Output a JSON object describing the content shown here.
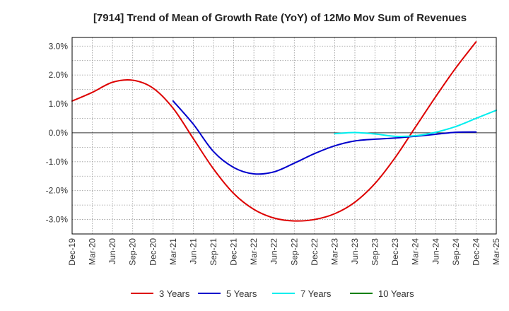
{
  "chart_data": {
    "type": "line",
    "title": "[7914]  Trend of Mean of Growth Rate (YoY) of 12Mo Mov Sum of Revenues",
    "xlabel": "",
    "ylabel": "",
    "x_tick_labels": [
      "Dec-19",
      "Mar-20",
      "Jun-20",
      "Sep-20",
      "Dec-20",
      "Mar-21",
      "Jun-21",
      "Sep-21",
      "Dec-21",
      "Mar-22",
      "Jun-22",
      "Sep-22",
      "Dec-22",
      "Mar-23",
      "Jun-23",
      "Sep-23",
      "Dec-23",
      "Mar-24",
      "Jun-24",
      "Sep-24",
      "Dec-24",
      "Mar-25"
    ],
    "y_ticks": [
      3.0,
      2.0,
      1.0,
      0.0,
      -1.0,
      -2.0,
      -3.0
    ],
    "y_tick_labels": [
      "3.0%",
      "2.0%",
      "1.0%",
      "0.0%",
      "-1.0%",
      "-2.0%",
      "-3.0%"
    ],
    "ylim": [
      -3.5,
      3.3
    ],
    "grid": true,
    "legend_position": "bottom",
    "series": [
      {
        "name": "3 Years",
        "color": "#dd0000",
        "start_index": 0,
        "values": [
          1.1,
          1.4,
          1.75,
          1.82,
          1.55,
          0.85,
          -0.2,
          -1.25,
          -2.1,
          -2.65,
          -2.95,
          -3.05,
          -3.0,
          -2.8,
          -2.4,
          -1.75,
          -0.85,
          0.2,
          1.25,
          2.25,
          3.15
        ]
      },
      {
        "name": "5 Years",
        "color": "#0000cc",
        "start_index": 5,
        "values": [
          1.1,
          0.3,
          -0.65,
          -1.2,
          -1.42,
          -1.35,
          -1.05,
          -0.72,
          -0.45,
          -0.28,
          -0.22,
          -0.18,
          -0.12,
          -0.05,
          0.02,
          0.03
        ]
      },
      {
        "name": "7 Years",
        "color": "#00eeee",
        "start_index": 13,
        "values": [
          -0.03,
          0.01,
          -0.04,
          -0.12,
          -0.1,
          0.02,
          0.22,
          0.5,
          0.78
        ]
      },
      {
        "name": "10 Years",
        "color": "#008000",
        "start_index": 0,
        "values": []
      }
    ]
  }
}
